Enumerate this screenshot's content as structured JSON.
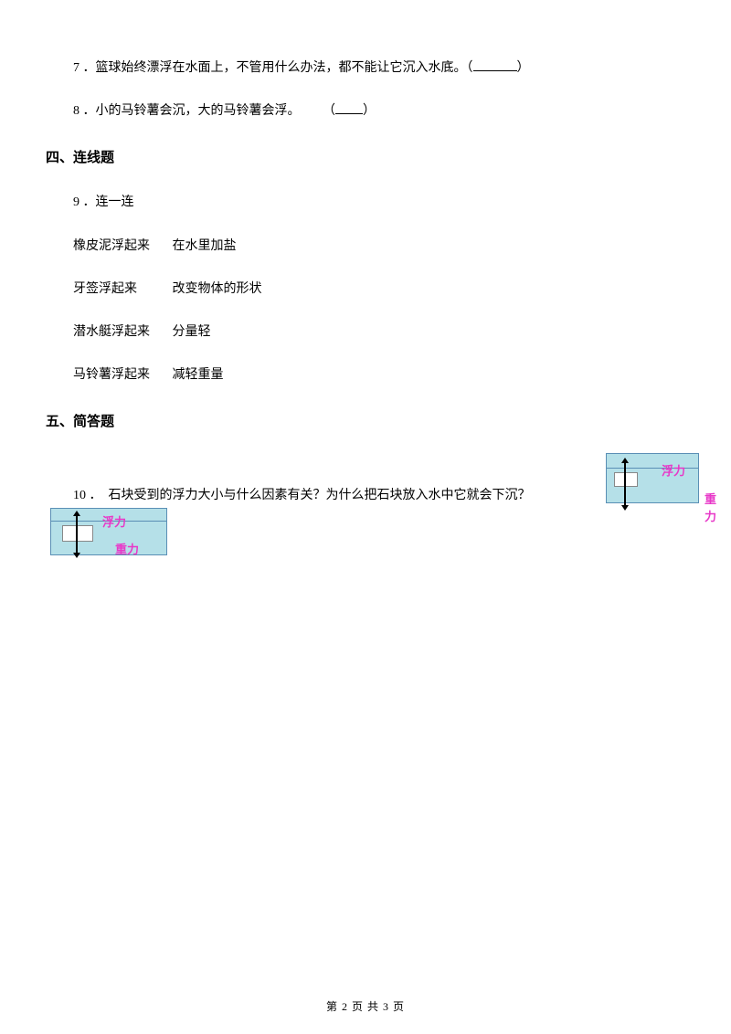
{
  "q7": {
    "number": "7",
    "text": "篮球始终漂浮在水面上，不管用什么办法，都不能让它沉入水底。（",
    "closeParen": "）"
  },
  "q8": {
    "number": "8",
    "text": "小的马铃薯会沉，大的马铃薯会浮。",
    "openParen": "（",
    "closeParen": "）"
  },
  "section4": {
    "title": "四、连线题"
  },
  "q9": {
    "number": "9",
    "text": "连一连",
    "items": [
      {
        "left": "橡皮泥浮起来",
        "right": "在水里加盐"
      },
      {
        "left": "牙签浮起来",
        "right": "改变物体的形状"
      },
      {
        "left": "潜水艇浮起来",
        "right": "分量轻"
      },
      {
        "left": "马铃薯浮起来",
        "right": "减轻重量"
      }
    ]
  },
  "section5": {
    "title": "五、简答题"
  },
  "q10": {
    "number": "10",
    "text": "石块受到的浮力大小与什么因素有关？为什么把石块放入水中它就会下沉？"
  },
  "diagram": {
    "fuli": "浮力",
    "zhongli": "重力",
    "bgColor": "#b5e0e8",
    "borderColor": "#5a8fb5",
    "labelColor": "#e838c8"
  },
  "footer": {
    "text": "第 2 页 共 3 页"
  }
}
